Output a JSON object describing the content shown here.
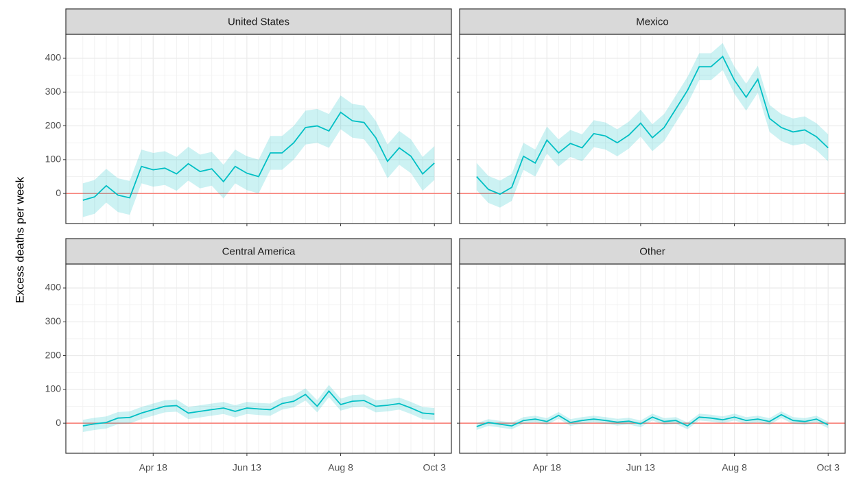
{
  "y_label": "Excess deaths per week",
  "chart_data": [
    {
      "type": "line",
      "title": "United States",
      "x": [
        "Mar 7",
        "Mar 14",
        "Mar 21",
        "Mar 28",
        "Apr 4",
        "Apr 11",
        "Apr 18",
        "Apr 25",
        "May 2",
        "May 9",
        "May 16",
        "May 23",
        "May 30",
        "Jun 6",
        "Jun 13",
        "Jun 20",
        "Jun 27",
        "Jul 4",
        "Jul 11",
        "Jul 18",
        "Jul 25",
        "Aug 1",
        "Aug 8",
        "Aug 15",
        "Aug 22",
        "Aug 29",
        "Sep 5",
        "Sep 12",
        "Sep 19",
        "Sep 26",
        "Oct 3"
      ],
      "xticks": [
        "Apr 18",
        "Jun 13",
        "Aug 8",
        "Oct 3"
      ],
      "ylim": [
        -89,
        471
      ],
      "yticks": [
        0,
        100,
        200,
        300,
        400
      ],
      "hline": {
        "value": 0,
        "color": "#F8766D"
      },
      "color": "#00BFC4",
      "values": [
        -20,
        -10,
        23,
        -5,
        -13,
        80,
        70,
        75,
        58,
        88,
        65,
        73,
        35,
        80,
        60,
        50,
        120,
        120,
        150,
        195,
        200,
        185,
        240,
        215,
        210,
        165,
        95,
        135,
        110,
        58,
        90
      ],
      "lower": [
        -70,
        -60,
        -27,
        -55,
        -63,
        30,
        20,
        25,
        8,
        38,
        15,
        23,
        -15,
        30,
        10,
        0,
        70,
        70,
        100,
        145,
        150,
        135,
        190,
        165,
        160,
        115,
        45,
        85,
        60,
        8,
        40
      ],
      "upper": [
        30,
        40,
        73,
        45,
        37,
        130,
        120,
        125,
        108,
        138,
        115,
        123,
        85,
        130,
        110,
        100,
        170,
        170,
        200,
        245,
        250,
        235,
        290,
        265,
        260,
        215,
        145,
        185,
        160,
        108,
        140
      ]
    },
    {
      "type": "line",
      "title": "Mexico",
      "x": [
        "Mar 7",
        "Mar 14",
        "Mar 21",
        "Mar 28",
        "Apr 4",
        "Apr 11",
        "Apr 18",
        "Apr 25",
        "May 2",
        "May 9",
        "May 16",
        "May 23",
        "May 30",
        "Jun 6",
        "Jun 13",
        "Jun 20",
        "Jun 27",
        "Jul 4",
        "Jul 11",
        "Jul 18",
        "Jul 25",
        "Aug 1",
        "Aug 8",
        "Aug 15",
        "Aug 22",
        "Aug 29",
        "Sep 5",
        "Sep 12",
        "Sep 19",
        "Sep 26",
        "Oct 3"
      ],
      "xticks": [
        "Apr 18",
        "Jun 13",
        "Aug 8",
        "Oct 3"
      ],
      "ylim": [
        -89,
        471
      ],
      "yticks": [
        0,
        100,
        200,
        300,
        400
      ],
      "hline": {
        "value": 0,
        "color": "#F8766D"
      },
      "color": "#00BFC4",
      "values": [
        50,
        12,
        -2,
        18,
        110,
        90,
        158,
        120,
        148,
        135,
        177,
        170,
        150,
        173,
        208,
        165,
        195,
        250,
        305,
        375,
        375,
        405,
        335,
        285,
        338,
        222,
        195,
        182,
        188,
        168,
        135
      ],
      "lower": [
        10,
        -28,
        -42,
        -22,
        70,
        50,
        118,
        80,
        108,
        95,
        137,
        130,
        110,
        133,
        168,
        125,
        155,
        210,
        265,
        335,
        335,
        365,
        295,
        245,
        298,
        182,
        155,
        142,
        148,
        128,
        95
      ],
      "upper": [
        90,
        52,
        38,
        58,
        150,
        130,
        198,
        160,
        188,
        175,
        217,
        210,
        190,
        213,
        248,
        205,
        235,
        290,
        345,
        415,
        415,
        445,
        375,
        325,
        378,
        262,
        235,
        222,
        228,
        208,
        175
      ]
    },
    {
      "type": "line",
      "title": "Central America",
      "x": [
        "Mar 7",
        "Mar 14",
        "Mar 21",
        "Mar 28",
        "Apr 4",
        "Apr 11",
        "Apr 18",
        "Apr 25",
        "May 2",
        "May 9",
        "May 16",
        "May 23",
        "May 30",
        "Jun 6",
        "Jun 13",
        "Jun 20",
        "Jun 27",
        "Jul 4",
        "Jul 11",
        "Jul 18",
        "Jul 25",
        "Aug 1",
        "Aug 8",
        "Aug 15",
        "Aug 22",
        "Aug 29",
        "Sep 5",
        "Sep 12",
        "Sep 19",
        "Sep 26",
        "Oct 3"
      ],
      "xticks": [
        "Apr 18",
        "Jun 13",
        "Aug 8",
        "Oct 3"
      ],
      "ylim": [
        -89,
        471
      ],
      "yticks": [
        0,
        100,
        200,
        300,
        400
      ],
      "hline": {
        "value": 0,
        "color": "#F8766D"
      },
      "color": "#00BFC4",
      "values": [
        -8,
        -2,
        2,
        15,
        17,
        30,
        40,
        50,
        52,
        30,
        35,
        40,
        45,
        35,
        45,
        42,
        40,
        58,
        65,
        85,
        50,
        95,
        55,
        65,
        67,
        50,
        53,
        58,
        45,
        30,
        27
      ],
      "lower": [
        -26,
        -20,
        -16,
        -3,
        -1,
        12,
        22,
        32,
        34,
        12,
        17,
        22,
        27,
        17,
        27,
        24,
        22,
        40,
        47,
        67,
        32,
        77,
        37,
        47,
        49,
        32,
        35,
        40,
        27,
        12,
        9
      ],
      "upper": [
        10,
        16,
        20,
        33,
        35,
        48,
        58,
        68,
        70,
        48,
        53,
        58,
        63,
        53,
        63,
        60,
        58,
        76,
        83,
        103,
        68,
        113,
        73,
        83,
        85,
        68,
        71,
        76,
        63,
        48,
        45
      ]
    },
    {
      "type": "line",
      "title": "Other",
      "x": [
        "Mar 7",
        "Mar 14",
        "Mar 21",
        "Mar 28",
        "Apr 4",
        "Apr 11",
        "Apr 18",
        "Apr 25",
        "May 2",
        "May 9",
        "May 16",
        "May 23",
        "May 30",
        "Jun 6",
        "Jun 13",
        "Jun 20",
        "Jun 27",
        "Jul 4",
        "Jul 11",
        "Jul 18",
        "Jul 25",
        "Aug 1",
        "Aug 8",
        "Aug 15",
        "Aug 22",
        "Aug 29",
        "Sep 5",
        "Sep 12",
        "Sep 19",
        "Sep 26",
        "Oct 3"
      ],
      "xticks": [
        "Apr 18",
        "Jun 13",
        "Aug 8",
        "Oct 3"
      ],
      "ylim": [
        -89,
        471
      ],
      "yticks": [
        0,
        100,
        200,
        300,
        400
      ],
      "hline": {
        "value": 0,
        "color": "#F8766D"
      },
      "color": "#00BFC4",
      "values": [
        -10,
        2,
        -3,
        -8,
        8,
        12,
        5,
        23,
        2,
        8,
        12,
        8,
        3,
        6,
        -2,
        18,
        5,
        8,
        -8,
        18,
        15,
        10,
        18,
        8,
        12,
        5,
        25,
        8,
        5,
        12,
        -5
      ],
      "lower": [
        -20,
        -8,
        -13,
        -18,
        -2,
        2,
        -5,
        13,
        -8,
        -2,
        2,
        -2,
        -7,
        -4,
        -12,
        8,
        -5,
        -2,
        -18,
        8,
        5,
        0,
        8,
        -2,
        2,
        -5,
        15,
        -2,
        -5,
        2,
        -15
      ],
      "upper": [
        0,
        12,
        7,
        2,
        18,
        22,
        15,
        33,
        12,
        18,
        22,
        18,
        13,
        16,
        8,
        28,
        15,
        18,
        2,
        28,
        25,
        20,
        28,
        18,
        22,
        15,
        35,
        18,
        15,
        22,
        5
      ]
    }
  ]
}
